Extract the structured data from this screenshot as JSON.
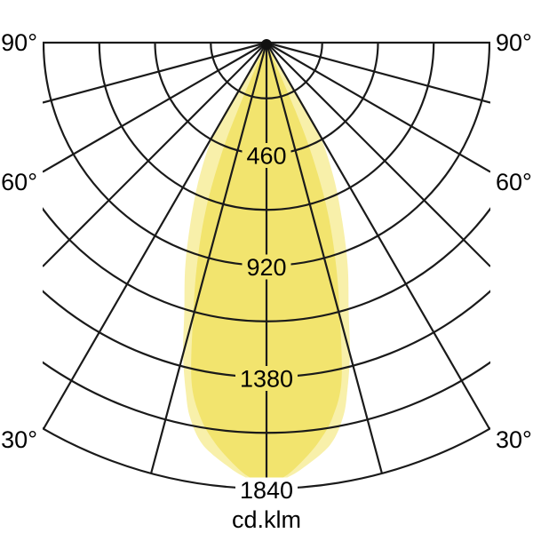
{
  "page": {
    "background": "#ffffff"
  },
  "figure": {
    "unit_label": "cd.klm",
    "angle_labels": [
      "90°",
      "60°",
      "30°"
    ],
    "ring_labels": [
      "460",
      "920",
      "1380",
      "1840"
    ]
  },
  "chart_data": {
    "type": "polar",
    "subtype": "luminous-intensity-distribution",
    "title": "",
    "unit": "cd.klm",
    "angle_axis": {
      "zero_direction": "down",
      "rays_deg": [
        0,
        15,
        30,
        45,
        60,
        75,
        90
      ],
      "labeled_deg": [
        30,
        60,
        90
      ],
      "symmetric_left_right": true
    },
    "radial_axis": {
      "ring_step_cd": 230,
      "rings_cd": [
        230,
        460,
        690,
        920,
        1150,
        1380,
        1610,
        1840
      ],
      "labeled_rings_cd": [
        460,
        920,
        1380,
        1840
      ],
      "max_cd": 1840
    },
    "series": [
      {
        "name": "outer-halo-lobe",
        "color": "#F8F0AA",
        "points_deg_cd": [
          [
            0,
            1830
          ],
          [
            2.5,
            1800
          ],
          [
            5,
            1760
          ],
          [
            9,
            1680
          ],
          [
            11.5,
            1580
          ],
          [
            13,
            1480
          ],
          [
            15,
            1330
          ],
          [
            17,
            1160
          ],
          [
            20,
            980
          ],
          [
            23,
            800
          ],
          [
            26.5,
            620
          ],
          [
            30,
            430
          ],
          [
            31,
            200
          ],
          [
            31.5,
            0
          ]
        ]
      },
      {
        "name": "core-beam-lobe",
        "color": "#F2E46E",
        "points_deg_cd": [
          [
            0,
            1820
          ],
          [
            2.5,
            1790
          ],
          [
            5,
            1730
          ],
          [
            7.5,
            1660
          ],
          [
            10,
            1570
          ],
          [
            12.5,
            1430
          ],
          [
            15,
            1170
          ],
          [
            17.5,
            950
          ],
          [
            20,
            730
          ],
          [
            22,
            500
          ],
          [
            23,
            300
          ],
          [
            24,
            0
          ]
        ]
      }
    ],
    "grid": true,
    "legend": "none",
    "colors": {
      "grid": "#1a1a1a",
      "text": "#000000",
      "background": "#ffffff"
    }
  }
}
